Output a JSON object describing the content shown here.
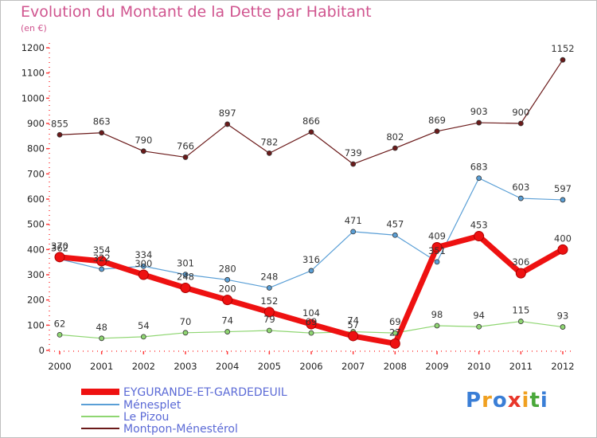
{
  "title": "Evolution du Montant de la Dette par Habitant",
  "subtitle": "(en €)",
  "logo": {
    "letters": [
      "P",
      "r",
      "o",
      "x",
      "i",
      "t",
      "i"
    ],
    "colors": [
      "#3a7ed6",
      "#f0a020",
      "#3a7ed6",
      "#e8362a",
      "#f0a020",
      "#4aa83a",
      "#3a7ed6"
    ]
  },
  "chart_data": {
    "type": "line",
    "x": [
      "2000",
      "2001",
      "2002",
      "2003",
      "2004",
      "2005",
      "2006",
      "2007",
      "2008",
      "2009",
      "2010",
      "2011",
      "2012"
    ],
    "ylim": [
      0,
      1200
    ],
    "yticks": [
      0,
      100,
      200,
      300,
      400,
      500,
      600,
      700,
      800,
      900,
      1000,
      1100,
      1200
    ],
    "grid": false,
    "legend_position": "bottom-left",
    "series": [
      {
        "name": "EYGURANDE-ET-GARDEDEUIL",
        "color": "#ee1111",
        "values": [
          370,
          354,
          300,
          248,
          200,
          152,
          104,
          57,
          27,
          409,
          453,
          306,
          400
        ]
      },
      {
        "name": "Ménesplet",
        "color": "#5a9fd6",
        "values": [
          362,
          322,
          334,
          301,
          280,
          248,
          316,
          471,
          457,
          351,
          683,
          603,
          597
        ]
      },
      {
        "name": "Le Pizou",
        "color": "#8fd672",
        "values": [
          62,
          48,
          54,
          70,
          74,
          79,
          69,
          74,
          69,
          98,
          94,
          115,
          93
        ]
      },
      {
        "name": "Montpon-Ménestérol",
        "color": "#6b1a1a",
        "values": [
          855,
          863,
          790,
          766,
          897,
          782,
          866,
          739,
          802,
          869,
          903,
          900,
          1152
        ]
      }
    ]
  }
}
